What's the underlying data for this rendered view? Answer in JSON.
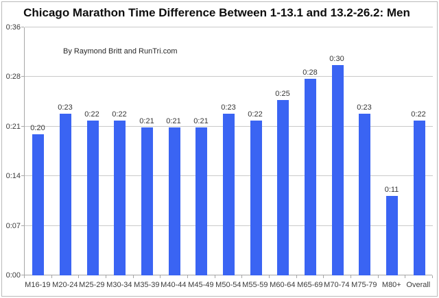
{
  "chart_data": {
    "type": "bar",
    "title": "Chicago Marathon Time Difference Between 1-13.1 and 13.2-26.2: Men",
    "annotation": "By Raymond Britt and RunTri.com",
    "categories": [
      "M16-19",
      "M20-24",
      "M25-29",
      "M30-34",
      "M35-39",
      "M40-44",
      "M45-49",
      "M50-54",
      "M55-59",
      "M60-64",
      "M65-69",
      "M70-74",
      "M75-79",
      "M80+",
      "Overall"
    ],
    "values_display": [
      "0:20",
      "0:23",
      "0:22",
      "0:22",
      "0:21",
      "0:21",
      "0:21",
      "0:23",
      "0:22",
      "0:25",
      "0:28",
      "0:30",
      "0:23",
      "0:11",
      "0:22"
    ],
    "values_minutes": [
      20,
      23,
      22,
      22,
      21,
      21,
      21,
      23,
      22,
      25,
      28,
      30,
      23,
      11,
      22
    ],
    "xlabel": "",
    "ylabel": "",
    "y_axis": {
      "tick_labels": [
        "0:00",
        "0:07",
        "0:14",
        "0:21",
        "0:28",
        "0:36"
      ],
      "tick_minutes": [
        0,
        7.2,
        14.4,
        21.6,
        28.8,
        36
      ],
      "min": 0,
      "max": 36
    },
    "legend_position": "none",
    "grid": true,
    "bar_color": "#3a64f3",
    "gridline_color": "#c9c9c9",
    "axis_color": "#a6a6a6"
  }
}
